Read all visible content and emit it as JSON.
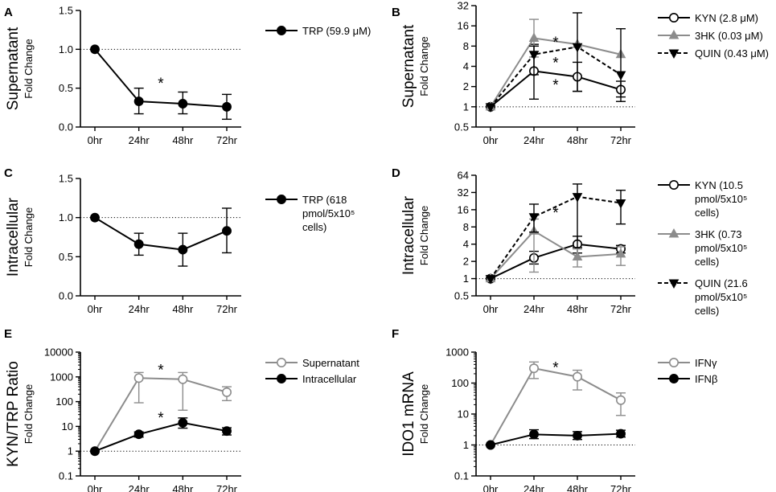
{
  "categories": [
    "0hr",
    "24hr",
    "48hr",
    "72hr"
  ],
  "colors": {
    "black": "#000000",
    "gray": "#8c8c8c"
  },
  "chart_data": [
    {
      "id": "A",
      "type": "line",
      "letter": "A",
      "scale": "linear",
      "ylabel_main": "Supernatant",
      "ylabel_sub": "Fold Change",
      "ylim": [
        0,
        1.5
      ],
      "yticks": [
        "0.0",
        "0.5",
        "1.0",
        "1.5"
      ],
      "categories": [
        "0hr",
        "24hr",
        "48hr",
        "72hr"
      ],
      "reference_line": 1.0,
      "series": [
        {
          "name": "TRP (59.9 μM)",
          "legend": [
            "TRP (59.9 μM)"
          ],
          "marker": "circle-filled",
          "color": "#000000",
          "dashed": false,
          "values": [
            1.0,
            0.33,
            0.3,
            0.26
          ],
          "err_lo": [
            1.0,
            0.17,
            0.17,
            0.1
          ],
          "err_hi": [
            1.0,
            0.5,
            0.45,
            0.42
          ]
        }
      ],
      "stars": [
        {
          "text": "*",
          "x": 1.5,
          "y": 0.58
        }
      ]
    },
    {
      "id": "B",
      "type": "line",
      "letter": "B",
      "scale": "log",
      "ylabel_main": "Supernatant",
      "ylabel_sub": "Fold Change",
      "ylim": [
        0.5,
        32
      ],
      "yticks": [
        "0.5",
        "1",
        "2",
        "4",
        "8",
        "16",
        "32"
      ],
      "categories": [
        "0hr",
        "24hr",
        "48hr",
        "72hr"
      ],
      "reference_line": 1,
      "series": [
        {
          "name": "KYN (2.8 μM)",
          "legend": [
            "KYN (2.8 μM)"
          ],
          "marker": "circle-open",
          "color": "#000000",
          "dashed": false,
          "values": [
            1,
            3.4,
            2.8,
            1.8
          ],
          "err_lo": [
            1,
            1.3,
            1.7,
            1.4
          ],
          "err_hi": [
            1,
            8.5,
            4.6,
            2.4
          ]
        },
        {
          "name": "3HK (0.03 μM)",
          "legend": [
            "3HK (0.03 μM)"
          ],
          "marker": "triangle-up-filled",
          "color": "#8c8c8c",
          "dashed": false,
          "values": [
            1,
            10.5,
            8.5,
            6.0
          ],
          "err_lo": [
            1,
            5.5,
            8.5,
            6.0
          ],
          "err_hi": [
            1,
            20,
            8.5,
            6.0
          ]
        },
        {
          "name": "QUIN (0.43 μM)",
          "legend": [
            "QUIN (0.43 μM)"
          ],
          "marker": "triangle-down-filled",
          "color": "#000000",
          "dashed": true,
          "values": [
            1,
            6.0,
            7.8,
            3.0
          ],
          "err_lo": [
            1,
            3.0,
            1.7,
            1.2
          ],
          "err_hi": [
            1,
            8.0,
            25,
            14.5
          ]
        }
      ],
      "stars": [
        {
          "text": "*",
          "x": 1.5,
          "y": 9.5
        },
        {
          "text": "*",
          "x": 1.5,
          "y": 4.7
        },
        {
          "text": "*",
          "x": 1.5,
          "y": 2.2
        }
      ]
    },
    {
      "id": "C",
      "type": "line",
      "letter": "C",
      "scale": "linear",
      "ylabel_main": "Intracellular",
      "ylabel_sub": "Fold Change",
      "ylim": [
        0,
        1.5
      ],
      "yticks": [
        "0.0",
        "0.5",
        "1.0",
        "1.5"
      ],
      "categories": [
        "0hr",
        "24hr",
        "48hr",
        "72hr"
      ],
      "reference_line": 1.0,
      "series": [
        {
          "name": "TRP (618 pmol/5x10^5 cells)",
          "legend": [
            "TRP (618",
            "pmol/5x10⁵",
            "cells)"
          ],
          "marker": "circle-filled",
          "color": "#000000",
          "dashed": false,
          "values": [
            1.0,
            0.66,
            0.59,
            0.83
          ],
          "err_lo": [
            1.0,
            0.52,
            0.38,
            0.55
          ],
          "err_hi": [
            1.0,
            0.8,
            0.8,
            1.12
          ]
        }
      ],
      "stars": []
    },
    {
      "id": "D",
      "type": "line",
      "letter": "D",
      "scale": "log",
      "ylabel_main": "Intracellular",
      "ylabel_sub": "Fold Change",
      "ylim": [
        0.5,
        64
      ],
      "yticks": [
        "0.5",
        "1",
        "2",
        "4",
        "8",
        "16",
        "32",
        "64"
      ],
      "categories": [
        "0hr",
        "24hr",
        "48hr",
        "72hr"
      ],
      "reference_line": 1,
      "series": [
        {
          "name": "KYN (10.5 pmol/5x10^5 cells)",
          "legend": [
            "KYN (10.5",
            "pmol/5x10⁵",
            "cells)"
          ],
          "marker": "circle-open",
          "color": "#000000",
          "dashed": false,
          "values": [
            1,
            2.3,
            4.0,
            3.3
          ],
          "err_lo": [
            1,
            1.8,
            2.8,
            2.8
          ],
          "err_hi": [
            1,
            3.0,
            5.5,
            3.8
          ]
        },
        {
          "name": "3HK (0.73 pmol/5x10^5 cells)",
          "legend": [
            "3HK (0.73",
            "pmol/5x10⁵",
            "cells)"
          ],
          "marker": "triangle-up-filled",
          "color": "#8c8c8c",
          "dashed": false,
          "values": [
            1,
            6.8,
            2.4,
            2.7
          ],
          "err_lo": [
            1,
            1.3,
            1.6,
            1.7
          ],
          "err_hi": [
            1,
            11,
            3.3,
            3.6
          ]
        },
        {
          "name": "QUIN (21.6 pmol/5x10^5 cells)",
          "legend": [
            "QUIN (21.6",
            "pmol/5x10⁵",
            "cells)"
          ],
          "marker": "triangle-down-filled",
          "color": "#000000",
          "dashed": true,
          "values": [
            1,
            12.0,
            27.0,
            21.0
          ],
          "err_lo": [
            1,
            6.5,
            3.5,
            9.0
          ],
          "err_hi": [
            1,
            20,
            45,
            35
          ]
        }
      ],
      "stars": [
        {
          "text": "*",
          "x": 1.5,
          "y": 15
        }
      ]
    },
    {
      "id": "E",
      "type": "line",
      "letter": "E",
      "scale": "log",
      "ylabel_main": "KYN/TRP Ratio",
      "ylabel_sub": "Fold Change",
      "ylim": [
        0.1,
        10000
      ],
      "yticks": [
        "0.1",
        "1",
        "10",
        "100",
        "1000",
        "10000"
      ],
      "categories": [
        "0hr",
        "24hr",
        "48hr",
        "72hr"
      ],
      "reference_line": 1,
      "series": [
        {
          "name": "Supernatant",
          "legend": [
            "Supernatant"
          ],
          "marker": "circle-open",
          "color": "#8c8c8c",
          "dashed": false,
          "values": [
            1,
            900,
            800,
            240
          ],
          "err_lo": [
            1,
            90,
            45,
            110
          ],
          "err_hi": [
            1,
            1500,
            1500,
            400
          ]
        },
        {
          "name": "Intracellular",
          "legend": [
            "Intracellular"
          ],
          "marker": "circle-filled",
          "color": "#000000",
          "dashed": false,
          "values": [
            1,
            4.8,
            14,
            6.5
          ],
          "err_lo": [
            1,
            3.7,
            8.5,
            4.5
          ],
          "err_hi": [
            1,
            6.0,
            22,
            8.8
          ]
        }
      ],
      "stars": [
        {
          "text": "*",
          "x": 1.5,
          "y": 2200
        },
        {
          "text": "*",
          "x": 1.5,
          "y": 25
        }
      ]
    },
    {
      "id": "F",
      "type": "line",
      "letter": "F",
      "scale": "log",
      "ylabel_main": "IDO1 mRNA",
      "ylabel_sub": "Fold Change",
      "ylim": [
        0.1,
        1000
      ],
      "yticks": [
        "0.1",
        "1",
        "10",
        "100",
        "1000"
      ],
      "categories": [
        "0hr",
        "24hr",
        "48hr",
        "72hr"
      ],
      "reference_line": 1,
      "series": [
        {
          "name": "IFNγ",
          "legend": [
            "IFNγ"
          ],
          "marker": "circle-open",
          "color": "#8c8c8c",
          "dashed": false,
          "values": [
            1,
            300,
            160,
            28
          ],
          "err_lo": [
            1,
            140,
            60,
            9
          ],
          "err_hi": [
            1,
            480,
            260,
            48
          ]
        },
        {
          "name": "IFNβ",
          "legend": [
            "IFNβ"
          ],
          "marker": "circle-filled",
          "color": "#000000",
          "dashed": false,
          "values": [
            1,
            2.2,
            2.0,
            2.3
          ],
          "err_lo": [
            1,
            1.6,
            1.5,
            1.8
          ],
          "err_hi": [
            1,
            3.1,
            2.7,
            3.0
          ]
        }
      ],
      "stars": [
        {
          "text": "*",
          "x": 1.5,
          "y": 350
        }
      ]
    }
  ]
}
